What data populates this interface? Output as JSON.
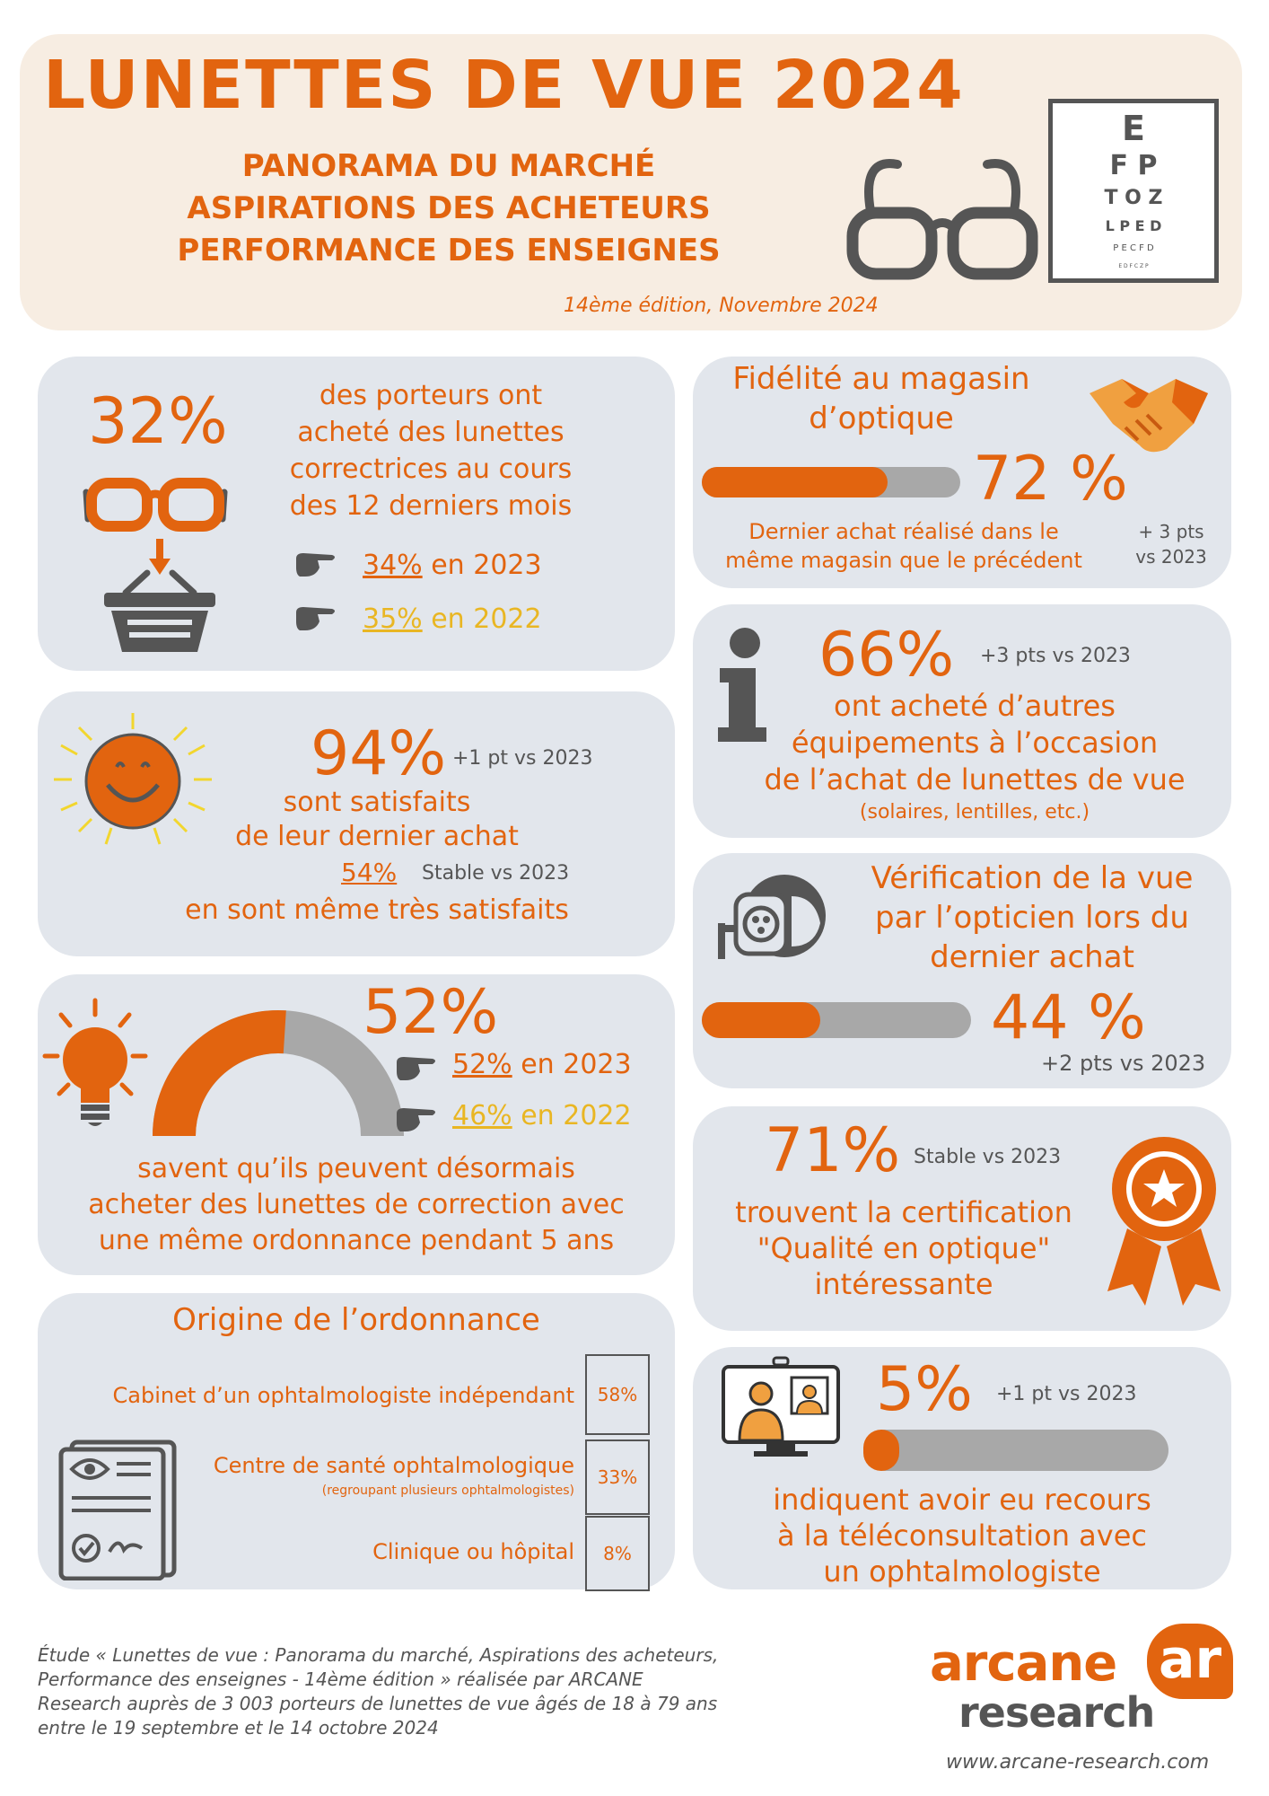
{
  "header": {
    "title": "LUNETTES DE VUE 2024",
    "sub1": "PANORAMA DU MARCHÉ",
    "sub2": "ASPIRATIONS DES ACHETEURS",
    "sub3": "PERFORMANCE DES ENSEIGNES",
    "edition": "14ème édition, Novembre 2024",
    "chart_rows": [
      "E",
      "F P",
      "T O Z",
      "L P E D",
      "P E C F D",
      "E D F C Z P"
    ]
  },
  "card_purchase": {
    "pct": "32%",
    "text": [
      "des porteurs ont",
      "acheté des lunettes",
      "correctrices au cours",
      "des 12 derniers mois"
    ],
    "y2023_val": "34%",
    "y2023_txt": " en 2023",
    "y2022_val": "35%",
    "y2022_txt": " en 2022"
  },
  "card_satisfaction": {
    "pct": "94%",
    "delta": "+1 pt vs 2023",
    "line1": "sont satisfaits",
    "line2": "de leur dernier achat",
    "very_val": "54%",
    "very_delta": "Stable vs 2023",
    "line3": "en sont même très satisfaits"
  },
  "card_prescription": {
    "pct": "52%",
    "gauge_value": 0.52,
    "y2023_val": "52%",
    "y2023_txt": " en 2023",
    "y2022_val": "46%",
    "y2022_txt": " en 2022",
    "text": [
      "savent qu’ils peuvent désormais",
      "acheter des lunettes de correction avec",
      "une même ordonnance pendant 5 ans"
    ]
  },
  "card_origin": {
    "title": "Origine de l’ordonnance",
    "rows": [
      {
        "label": "Cabinet d’un ophtalmologiste indépendant",
        "note": "",
        "pct": "58%"
      },
      {
        "label": "Centre de santé ophtalmologique",
        "note": "(regroupant plusieurs ophtalmologistes)",
        "pct": "33%"
      },
      {
        "label": "Clinique ou hôpital",
        "note": "",
        "pct": "8%"
      }
    ]
  },
  "card_loyalty": {
    "title1": "Fidélité au magasin",
    "title2": "d’optique",
    "pct": "72 %",
    "value": 0.72,
    "text1": "Dernier achat réalisé dans le",
    "text2": "même magasin que le précédent",
    "delta1": "+ 3 pts",
    "delta2": "vs 2023"
  },
  "card_other": {
    "pct": "66%",
    "delta": "+3 pts vs 2023",
    "text": [
      "ont acheté d’autres",
      "équipements à l’occasion",
      "de l’achat de lunettes de vue"
    ],
    "note": "(solaires, lentilles, etc.)"
  },
  "card_check": {
    "text": [
      "Vérification de la vue",
      "par l’opticien lors du",
      "dernier achat"
    ],
    "pct": "44 %",
    "value": 0.44,
    "delta": "+2 pts vs 2023"
  },
  "card_cert": {
    "pct": "71%",
    "delta": "Stable vs 2023",
    "text": [
      "trouvent la certification",
      "\"Qualité en optique\"",
      "intéressante"
    ]
  },
  "card_tele": {
    "pct": "5%",
    "value": 0.05,
    "delta": "+1 pt vs 2023",
    "text": [
      "indiquent avoir eu recours",
      "à la téléconsultation avec",
      "un ophtalmologiste"
    ]
  },
  "footer": {
    "study": [
      "Étude « Lunettes de vue : Panorama du marché, Aspirations des acheteurs,",
      "Performance des enseignes - 14ème édition » réalisée par ARCANE",
      "Research auprès de 3 003 porteurs de lunettes de vue âgés de 18 à 79 ans",
      "entre le 19 septembre et le 14 octobre 2024"
    ],
    "logo_top": "arcane",
    "logo_bottom": "research",
    "logo_mark": "ar",
    "url": "www.arcane-research.com"
  },
  "colors": {
    "accent": "#e2640f",
    "card": "#e2e6ec",
    "header_bg": "#f7ede2",
    "gray": "#555555",
    "yellow": "#e9b623"
  }
}
